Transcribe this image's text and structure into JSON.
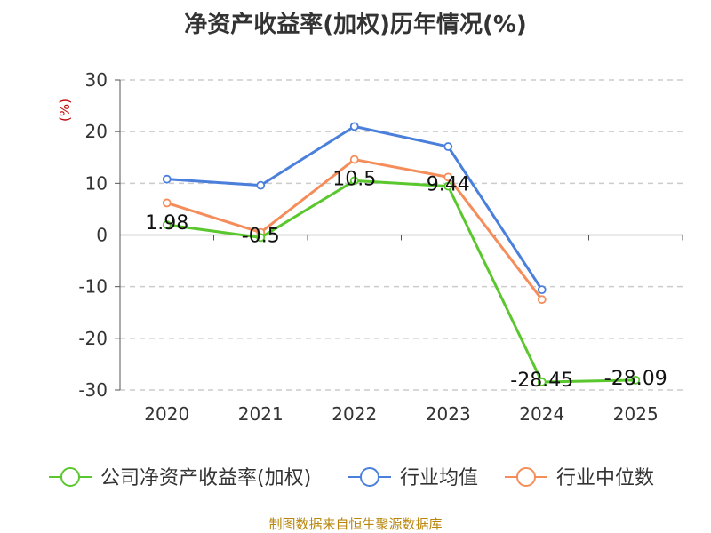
{
  "chart_data": {
    "type": "line",
    "title": "净资产收益率(加权)历年情况(%)",
    "ylabel": "(%)",
    "xlabel": "",
    "categories": [
      "2020",
      "2021",
      "2022",
      "2023",
      "2024",
      "2025"
    ],
    "ylim": [
      -30,
      30
    ],
    "yticks": [
      30,
      20,
      10,
      0,
      -10,
      -20,
      -30
    ],
    "grid": true,
    "legend_position": "bottom",
    "series": [
      {
        "name": "公司净资产收益率(加权)",
        "color": "#5bc72e",
        "values": [
          1.98,
          -0.5,
          10.5,
          9.44,
          -28.45,
          -28.09
        ],
        "labels": [
          "1.98",
          "-0.5",
          "10.5",
          "9.44",
          "-28.45",
          "-28.09"
        ]
      },
      {
        "name": "行业均值",
        "color": "#4a7fdc",
        "values": [
          10.8,
          9.6,
          21.0,
          17.1,
          -10.6,
          null
        ]
      },
      {
        "name": "行业中位数",
        "color": "#f58d5a",
        "values": [
          6.2,
          0.5,
          14.6,
          11.2,
          -12.5,
          null
        ]
      }
    ],
    "source": "制图数据来自恒生聚源数据库"
  }
}
